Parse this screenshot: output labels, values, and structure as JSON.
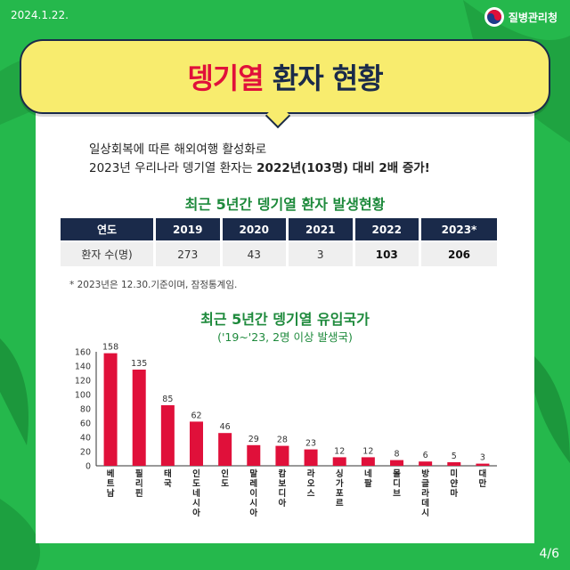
{
  "header": {
    "date": "2024.1.22.",
    "agency": "질병관리청"
  },
  "title": {
    "part1": "뎅기열",
    "part2": " 환자 현황"
  },
  "intro": {
    "line1": "일상회복에 따른 해외여행 활성화로",
    "line2_prefix": "2023년 우리나라 뎅기열 환자는 ",
    "line2_bold": "2022년(103명) 대비 2배 증가!"
  },
  "table": {
    "title": "최근 5년간 뎅기열 환자 발생현황",
    "headers": [
      "연도",
      "2019",
      "2020",
      "2021",
      "2022",
      "2023*"
    ],
    "row_label": "환자 수(명)",
    "values": [
      "273",
      "43",
      "3",
      "103",
      "206"
    ],
    "footnote": "* 2023년은 12.30.기준이며, 잠정통계임."
  },
  "chart_section": {
    "title": "최근 5년간 뎅기열 유입국가",
    "subtitle": "('19~'23, 2명 이상 발생국)"
  },
  "chart_data": {
    "type": "bar",
    "categories": [
      "베트남",
      "필리핀",
      "태국",
      "인도네시아",
      "인도",
      "말레이시아",
      "캄보디아",
      "라오스",
      "싱가포르",
      "네팔",
      "몰디브",
      "방글라데시",
      "미얀마",
      "대만"
    ],
    "values": [
      158,
      135,
      85,
      62,
      46,
      29,
      28,
      23,
      12,
      12,
      8,
      6,
      5,
      3
    ],
    "yticks": [
      0,
      20,
      40,
      60,
      80,
      100,
      120,
      140,
      160
    ],
    "ylim": [
      0,
      160
    ],
    "bar_color": "#e0103a",
    "grid": false
  },
  "footer": {
    "page": "4/6"
  }
}
